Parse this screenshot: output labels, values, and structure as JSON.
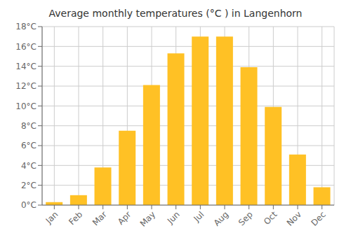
{
  "chart_data": {
    "type": "bar",
    "title": "Average monthly temperatures (°C ) in Langenhorn",
    "categories": [
      "Jan",
      "Feb",
      "Mar",
      "Apr",
      "May",
      "Jun",
      "Jul",
      "Aug",
      "Sep",
      "Oct",
      "Nov",
      "Dec"
    ],
    "values": [
      0.3,
      1.0,
      3.8,
      7.5,
      12.1,
      15.3,
      17.0,
      17.0,
      13.9,
      9.9,
      5.1,
      1.8
    ],
    "color": "#FFC125",
    "ylim": [
      0,
      18
    ],
    "yticks": [
      {
        "value": 0,
        "label": "0°C"
      },
      {
        "value": 2,
        "label": "2°C"
      },
      {
        "value": 4,
        "label": "4°C"
      },
      {
        "value": 6,
        "label": "6°C"
      },
      {
        "value": 8,
        "label": "8°C"
      },
      {
        "value": 10,
        "label": "10°C"
      },
      {
        "value": 12,
        "label": "12°C"
      },
      {
        "value": 14,
        "label": "14°C"
      },
      {
        "value": 16,
        "label": "16°C"
      },
      {
        "value": 18,
        "label": "18°C"
      }
    ],
    "grid": true
  }
}
